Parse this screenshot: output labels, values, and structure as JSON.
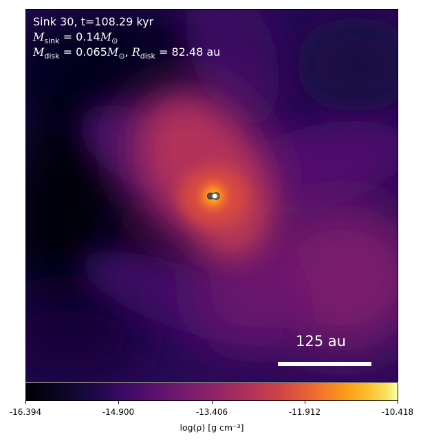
{
  "overlay": {
    "sink_line": "Sink 30, t=108.29 kyr",
    "msink_symbol": "M",
    "msink_subscript": "sink",
    "msink_value": " = 0.14",
    "msink_unit": "M",
    "msink_unit_sub": "⊙",
    "mdisk_symbol": "M",
    "mdisk_subscript": "disk",
    "mdisk_value": " = 0.065",
    "mdisk_unit": "M",
    "mdisk_unit_sub": "⊙",
    "rdisk_sep": ", ",
    "rdisk_symbol": "R",
    "rdisk_subscript": "disk",
    "rdisk_value": " = 82.48 au"
  },
  "scalebar": {
    "label": "125 au"
  },
  "colorbar": {
    "colormap": "inferno",
    "ticks": [
      "-16.394",
      "-14.900",
      "-13.406",
      "-11.912",
      "-10.418"
    ],
    "label": "log(ρ) [g cm⁻³]"
  }
}
